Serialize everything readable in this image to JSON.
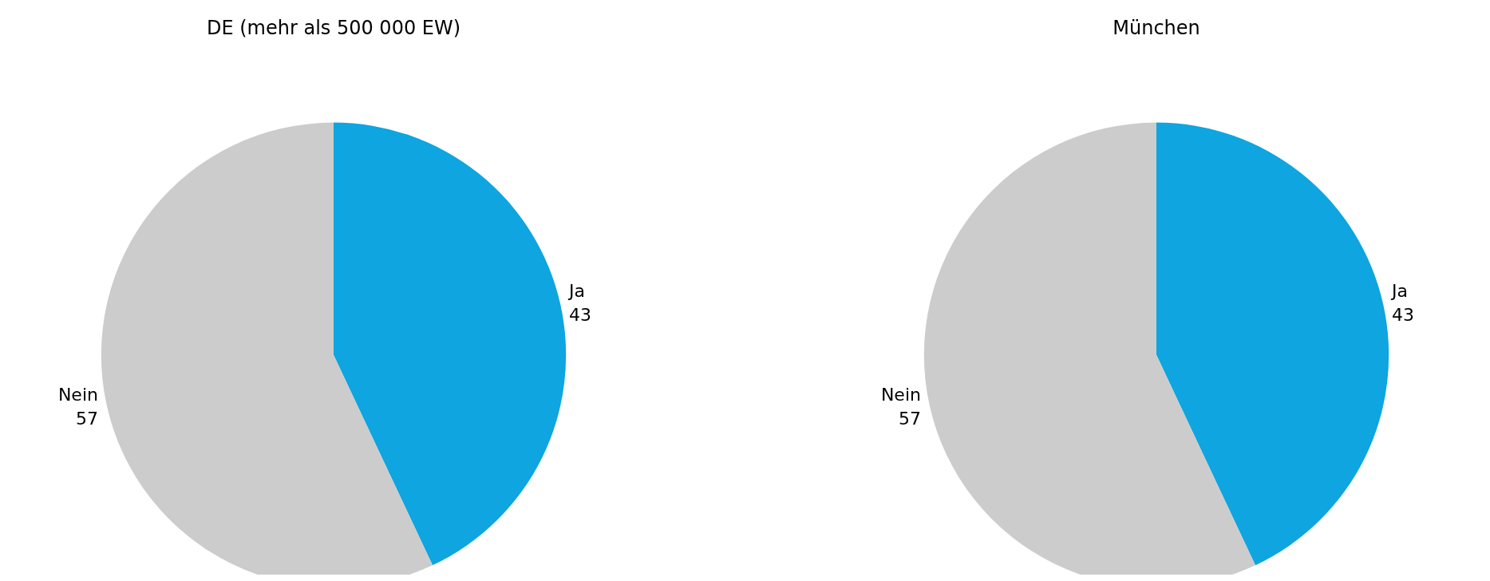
{
  "chart_data": [
    {
      "type": "pie",
      "title": "DE (mehr als 500 000 EW)",
      "categories": [
        "Ja",
        "Nein"
      ],
      "values": [
        43,
        57
      ],
      "colors": [
        "#0ea5e0",
        "#cccccc"
      ],
      "data_labels": true
    },
    {
      "type": "pie",
      "title": "München",
      "categories": [
        "Ja",
        "Nein"
      ],
      "values": [
        43,
        57
      ],
      "colors": [
        "#0ea5e0",
        "#cccccc"
      ],
      "data_labels": true
    }
  ]
}
